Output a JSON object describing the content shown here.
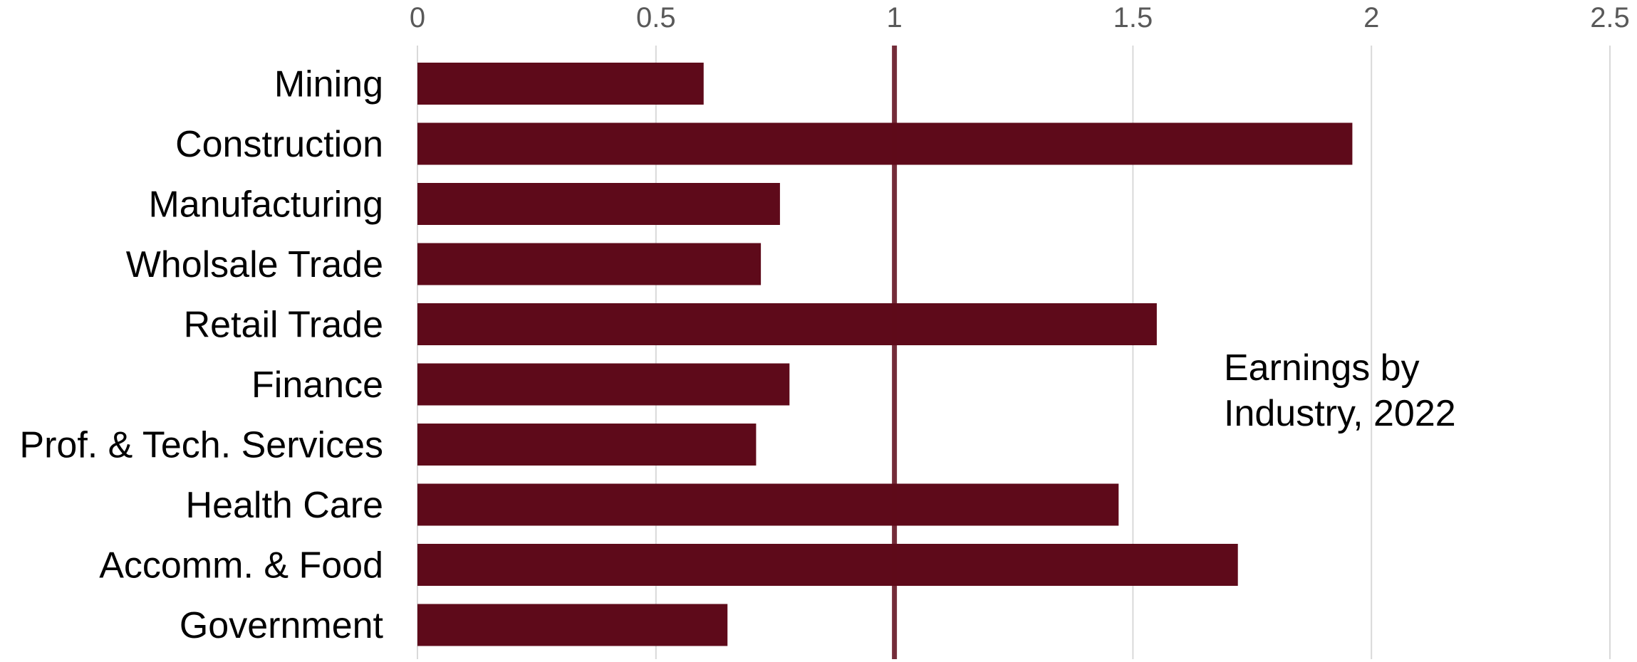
{
  "chart_data": {
    "type": "bar",
    "orientation": "horizontal",
    "categories": [
      "Mining",
      "Construction",
      "Manufacturing",
      "Wholsale Trade",
      "Retail Trade",
      "Finance",
      "Prof. & Tech. Services",
      "Health Care",
      "Accomm. & Food",
      "Government"
    ],
    "values": [
      0.6,
      1.96,
      0.76,
      0.72,
      1.55,
      0.78,
      0.71,
      1.47,
      1.72,
      0.65
    ],
    "title": "",
    "annotation": [
      "Earnings by",
      "Industry, 2022"
    ],
    "xlabel": "",
    "ylabel": "",
    "xlim": [
      0,
      2.5
    ],
    "x_ticks": [
      0,
      0.5,
      1,
      1.5,
      2,
      2.5
    ],
    "x_tick_labels": [
      "0",
      "0.5",
      "1",
      "1.5",
      "2",
      "2.5"
    ],
    "x_axis_position": "top",
    "reference_line": 1,
    "grid": "vertical",
    "legend": "none",
    "colors": {
      "bar": "#5e0a1a",
      "reference_line": "#5e0a1a",
      "grid": "#d9d9d9"
    }
  }
}
